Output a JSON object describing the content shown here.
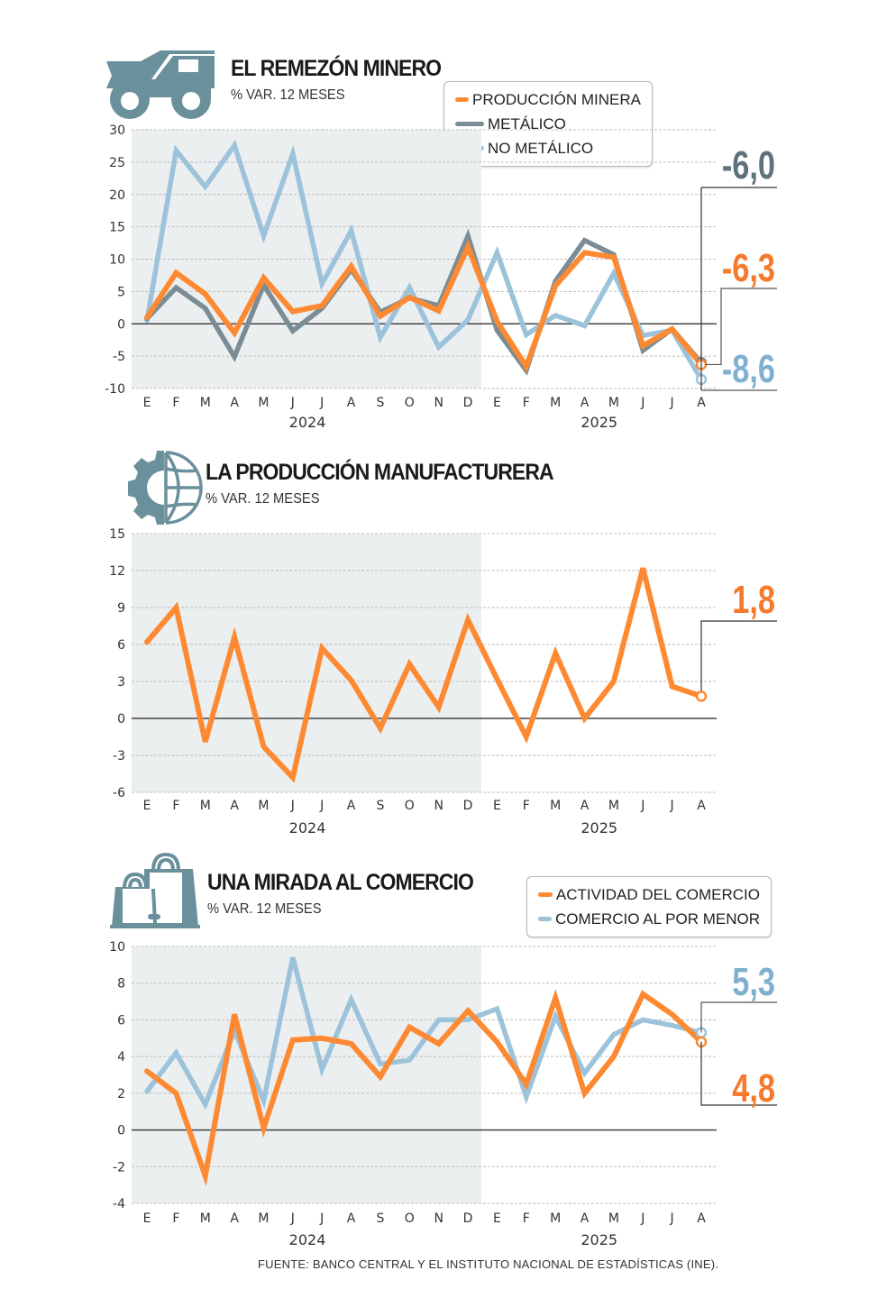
{
  "colors": {
    "orange": "#fd8a32",
    "dark_gray": "#7a8c94",
    "light_blue": "#9cc3da",
    "icon": "#6a909c",
    "shade": "#eceff0",
    "value_gray": "#5e727b",
    "value_orange": "#f57a2c",
    "value_blue": "#80b0cf"
  },
  "source": "FUENTE: BANCO CENTRAL Y EL INSTITUTO NACIONAL DE ESTADÍSTICAS (INE).",
  "chart_data": [
    {
      "id": "mining",
      "type": "line",
      "icon": "mining-truck-icon",
      "title": "EL REMEZÓN MINERO",
      "subtitle": "% VAR. 12 MESES",
      "categories": [
        "E",
        "F",
        "M",
        "A",
        "M",
        "J",
        "J",
        "A",
        "S",
        "O",
        "N",
        "D",
        "E",
        "F",
        "M",
        "A",
        "M",
        "J",
        "J",
        "A"
      ],
      "years": [
        {
          "label": "2024",
          "from": 0,
          "to": 11
        },
        {
          "label": "2025",
          "from": 12,
          "to": 19
        }
      ],
      "shaded_year": "2024",
      "ylim": [
        -10,
        30
      ],
      "yticks": [
        30,
        25,
        20,
        15,
        10,
        5,
        0,
        -5,
        -10
      ],
      "grid": true,
      "legend": "top-right",
      "series": [
        {
          "name": "NO METÁLICO",
          "color": "#9cc3da",
          "values": [
            0.5,
            26.8,
            21.2,
            27.6,
            13.6,
            26.3,
            6.2,
            14.4,
            -2.1,
            5.6,
            -3.6,
            0.6,
            11.0,
            -1.7,
            1.3,
            -0.3,
            7.8,
            -1.8,
            -1.0,
            -8.6
          ]
        },
        {
          "name": "METÁLICO",
          "color": "#7a8c94",
          "values": [
            0.8,
            5.6,
            2.4,
            -5.1,
            6.0,
            -1.1,
            2.4,
            8.4,
            1.8,
            4.0,
            2.8,
            13.6,
            -1.0,
            -7.2,
            6.6,
            12.9,
            10.7,
            -4.1,
            -0.8,
            -6.0
          ]
        },
        {
          "name": "PRODUCCIÓN MINERA",
          "color": "#fd8a32",
          "values": [
            1.0,
            7.9,
            4.6,
            -1.4,
            7.1,
            1.9,
            2.8,
            8.9,
            1.2,
            4.1,
            2.0,
            11.9,
            0.4,
            -6.6,
            5.9,
            11.0,
            10.3,
            -3.4,
            -0.8,
            -6.3
          ]
        }
      ],
      "legend_order": [
        "PRODUCCIÓN MINERA",
        "METÁLICO",
        "NO METÁLICO"
      ],
      "annotations": [
        {
          "text": "-6,0",
          "series": "METÁLICO",
          "color": "#5e727b"
        },
        {
          "text": "-6,3",
          "series": "PRODUCCIÓN MINERA",
          "color": "#f57a2c"
        },
        {
          "text": "-8,6",
          "series": "NO METÁLICO",
          "color": "#80b0cf"
        }
      ]
    },
    {
      "id": "manufacturing",
      "type": "line",
      "icon": "gear-globe-icon",
      "title": "LA PRODUCCIÓN MANUFACTURERA",
      "subtitle": "% VAR. 12 MESES",
      "categories": [
        "E",
        "F",
        "M",
        "A",
        "M",
        "J",
        "J",
        "A",
        "S",
        "O",
        "N",
        "D",
        "E",
        "F",
        "M",
        "A",
        "M",
        "J",
        "J",
        "A"
      ],
      "years": [
        {
          "label": "2024",
          "from": 0,
          "to": 11
        },
        {
          "label": "2025",
          "from": 12,
          "to": 19
        }
      ],
      "shaded_year": "2024",
      "ylim": [
        -6,
        15
      ],
      "yticks": [
        15,
        12,
        9,
        6,
        3,
        0,
        -3,
        -6
      ],
      "grid": true,
      "series": [
        {
          "name": "PRODUCCIÓN MANUFACTURERA",
          "color": "#fd8a32",
          "values": [
            6.2,
            9.0,
            -1.9,
            6.6,
            -2.3,
            -4.8,
            5.7,
            3.1,
            -0.8,
            4.4,
            0.9,
            8.0,
            3.2,
            -1.5,
            5.3,
            0.0,
            3.0,
            12.2,
            2.6,
            1.8
          ]
        }
      ],
      "annotations": [
        {
          "text": "1,8",
          "series": "PRODUCCIÓN MANUFACTURERA",
          "color": "#f57a2c"
        }
      ]
    },
    {
      "id": "commerce",
      "type": "line",
      "icon": "shopping-bags-icon",
      "title": "UNA MIRADA AL COMERCIO",
      "subtitle": "% VAR. 12 MESES",
      "categories": [
        "E",
        "F",
        "M",
        "A",
        "M",
        "J",
        "J",
        "A",
        "S",
        "O",
        "N",
        "D",
        "E",
        "F",
        "M",
        "A",
        "M",
        "J",
        "J",
        "A"
      ],
      "years": [
        {
          "label": "2024",
          "from": 0,
          "to": 11
        },
        {
          "label": "2025",
          "from": 12,
          "to": 19
        }
      ],
      "shaded_year": "2024",
      "ylim": [
        -4,
        10
      ],
      "yticks": [
        10,
        8,
        6,
        4,
        2,
        0,
        -2,
        -4
      ],
      "grid": true,
      "legend": "top-right",
      "series": [
        {
          "name": "COMERCIO AL POR MENOR",
          "color": "#9cc3da",
          "values": [
            2.1,
            4.2,
            1.4,
            5.4,
            1.6,
            9.4,
            3.3,
            7.1,
            3.6,
            3.8,
            6.0,
            6.0,
            6.6,
            1.8,
            6.2,
            3.1,
            5.2,
            6.0,
            5.7,
            5.3
          ]
        },
        {
          "name": "ACTIVIDAD DEL COMERCIO",
          "color": "#fd8a32",
          "values": [
            3.2,
            2.0,
            -2.5,
            6.3,
            0.1,
            4.9,
            5.0,
            4.7,
            2.9,
            5.6,
            4.7,
            6.5,
            4.8,
            2.5,
            7.2,
            2.0,
            4.0,
            7.4,
            6.3,
            4.8
          ]
        }
      ],
      "legend_order": [
        "ACTIVIDAD DEL COMERCIO",
        "COMERCIO AL POR MENOR"
      ],
      "annotations": [
        {
          "text": "5,3",
          "series": "COMERCIO AL POR MENOR",
          "color": "#80b0cf"
        },
        {
          "text": "4,8",
          "series": "ACTIVIDAD DEL COMERCIO",
          "color": "#f57a2c"
        }
      ]
    }
  ]
}
